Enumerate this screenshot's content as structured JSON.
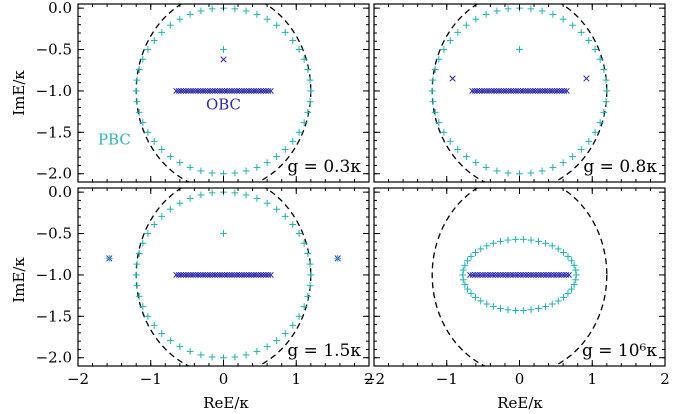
{
  "chart_data": [
    {
      "type": "scatter",
      "panel": "top-left",
      "label": "g = 0.3κ",
      "xlim": [
        -2,
        2
      ],
      "ylim": [
        -2.1,
        0.05
      ],
      "circle": {
        "cx": 0,
        "cy": -1,
        "r": 1.2
      },
      "pbc": {
        "shape": "circle",
        "cx": 0,
        "cy": -1,
        "rx": 1.2,
        "ry": 1.0,
        "count": 48,
        "extra": [
          [
            0,
            -0.5
          ]
        ]
      },
      "obc": {
        "band": [
          -0.65,
          0.65
        ],
        "y": -1.0,
        "count": 40,
        "extra": [
          [
            0,
            -0.62
          ]
        ]
      },
      "annotations": {
        "obc": "OBC",
        "pbc": "PBC"
      }
    },
    {
      "type": "scatter",
      "panel": "top-right",
      "label": "g = 0.8κ",
      "xlim": [
        -2,
        2
      ],
      "ylim": [
        -2.1,
        0.05
      ],
      "circle": {
        "cx": 0,
        "cy": -1,
        "r": 1.2
      },
      "pbc": {
        "shape": "circle",
        "cx": 0,
        "cy": -1,
        "rx": 1.2,
        "ry": 1.0,
        "count": 48,
        "extra": [
          [
            0,
            -0.5
          ]
        ]
      },
      "obc": {
        "band": [
          -0.65,
          0.65
        ],
        "y": -1.0,
        "count": 40,
        "extra": [
          [
            -0.92,
            -0.85
          ],
          [
            0.92,
            -0.85
          ]
        ]
      }
    },
    {
      "type": "scatter",
      "panel": "bottom-left",
      "label": "g = 1.5κ",
      "xlim": [
        -2,
        2
      ],
      "ylim": [
        -2.1,
        0.05
      ],
      "circle": {
        "cx": 0,
        "cy": -1,
        "r": 1.2
      },
      "pbc": {
        "shape": "circle",
        "cx": 0,
        "cy": -1,
        "rx": 1.2,
        "ry": 1.0,
        "count": 48,
        "extra": [
          [
            0,
            -0.5
          ],
          [
            -1.57,
            -0.8
          ],
          [
            1.57,
            -0.8
          ]
        ]
      },
      "obc": {
        "band": [
          -0.65,
          0.65
        ],
        "y": -1.0,
        "count": 40,
        "extra": [
          [
            -1.57,
            -0.8
          ],
          [
            1.57,
            -0.8
          ]
        ]
      }
    },
    {
      "type": "scatter",
      "panel": "bottom-right",
      "label": "g = 10⁶κ",
      "xlim": [
        -2,
        2
      ],
      "ylim": [
        -2.1,
        0.05
      ],
      "circle": {
        "cx": 0,
        "cy": -1,
        "r": 1.2
      },
      "pbc": {
        "shape": "ellipse",
        "cx": 0,
        "cy": -1,
        "rx": 0.78,
        "ry": 0.43,
        "count": 46,
        "extra": []
      },
      "obc": {
        "band": [
          -0.68,
          0.68
        ],
        "y": -1.0,
        "count": 40,
        "extra": []
      }
    }
  ],
  "axes": {
    "xlabel": "ReE/κ",
    "ylabel": "ImE/κ",
    "xticks": [
      "−2",
      "−1",
      "0",
      "1",
      "2"
    ],
    "xtick_values": [
      -2,
      -1,
      0,
      1,
      2
    ],
    "yticks": [
      "0.0",
      "−0.5",
      "−1.0",
      "−1.5",
      "−2.0"
    ],
    "ytick_values": [
      0,
      -0.5,
      -1.0,
      -1.5,
      -2.0
    ]
  },
  "colors": {
    "pbc": "#20b2b2",
    "obc": "#2323a6",
    "circle": "#000000",
    "obc_label": "#2a2aa8",
    "pbc_label": "#2cb5b5"
  }
}
